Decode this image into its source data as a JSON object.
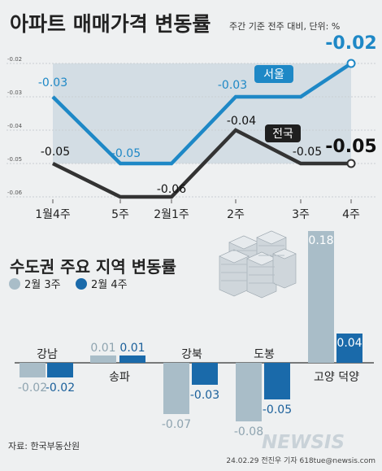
{
  "top": {
    "title": "아파트 매매가격 변동률",
    "note": "주간 기준 전주 대비, 단위: %"
  },
  "bottom": {
    "title": "수도권 주요 지역 변동률",
    "legend": [
      "2월 3주",
      "2월 4주"
    ]
  },
  "footer": {
    "source": "자료: 한국부동산원",
    "credit": "24.02.29 전진우 기자 618tue@newsis.com",
    "logo": "NEWSIS"
  },
  "colors": {
    "seoul": "#1e88c6",
    "national": "#333333",
    "week3": "#a9bdc8",
    "week4": "#1a6aaa",
    "background": "#eef0f1",
    "shade": "#d3dde4"
  },
  "chart_data": [
    {
      "type": "line",
      "x": [
        "1월4주",
        "5주",
        "2월1주",
        "2주",
        "3주",
        "4주"
      ],
      "y_ticks": [
        "-0.02",
        "-0.03",
        "-0.04",
        "-0.05",
        "-0.06"
      ],
      "ylim": [
        -0.06,
        -0.02
      ],
      "grid": true,
      "series": [
        {
          "name": "서울",
          "values": [
            -0.03,
            -0.05,
            -0.05,
            -0.03,
            -0.03,
            -0.02
          ],
          "labels": [
            "-0.03",
            "-0.05",
            "",
            "-0.03",
            "",
            "-0.02"
          ]
        },
        {
          "name": "전국",
          "values": [
            -0.05,
            -0.06,
            -0.06,
            -0.04,
            -0.05,
            -0.05
          ],
          "labels": [
            "-0.05",
            "",
            "-0.06",
            "-0.04",
            "-0.05",
            "-0.05"
          ]
        }
      ]
    },
    {
      "type": "bar",
      "categories": [
        "강남",
        "송파",
        "강북",
        "도봉",
        "고양 덕양"
      ],
      "series": [
        {
          "name": "2월 3주",
          "values": [
            -0.02,
            0.01,
            -0.07,
            -0.08,
            0.18
          ],
          "labels": [
            "-0.02",
            "0.01",
            "-0.07",
            "-0.08",
            "0.18"
          ]
        },
        {
          "name": "2월 4주",
          "values": [
            -0.02,
            0.01,
            -0.03,
            -0.05,
            0.04
          ],
          "labels": [
            "-0.02",
            "0.01",
            "-0.03",
            "-0.05",
            "0.04"
          ]
        }
      ]
    }
  ]
}
